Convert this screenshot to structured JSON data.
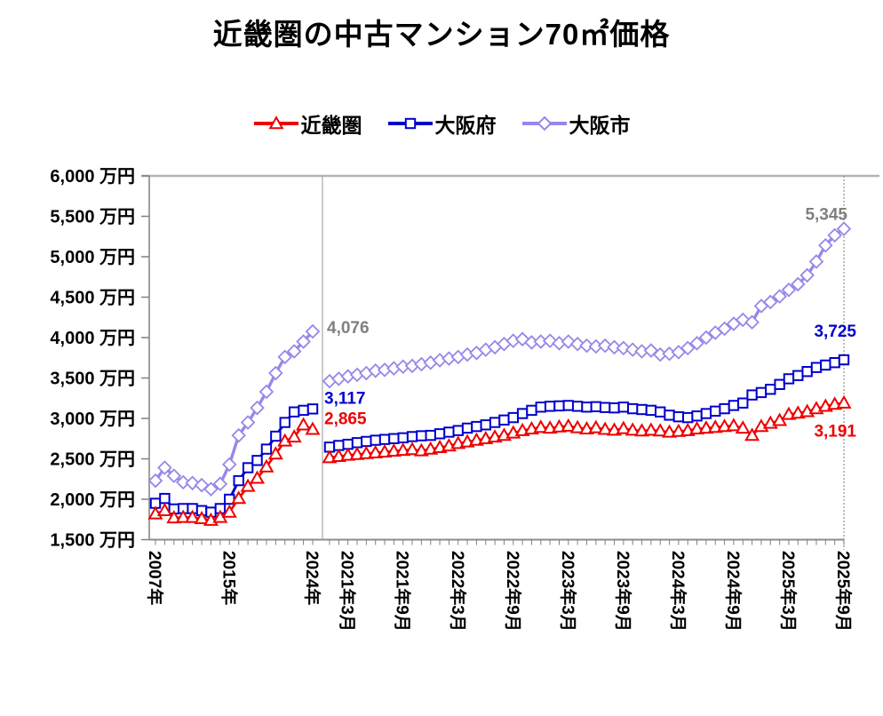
{
  "title": "近畿圏の中古マンション70㎡価格",
  "legend": [
    {
      "key": "kinki",
      "label": "近畿圏",
      "color": "#EE0000",
      "marker": "triangle"
    },
    {
      "key": "osaka_fu",
      "label": "大阪府",
      "color": "#0000CC",
      "marker": "square"
    },
    {
      "key": "osaka_shi",
      "label": "大阪市",
      "color": "#9787E8",
      "marker": "diamond"
    }
  ],
  "chart_data": {
    "type": "line",
    "title": "近畿圏の中古マンション70㎡価格",
    "unit": "万円",
    "y_axis": {
      "min": 1500,
      "max": 6000,
      "step": 500,
      "tick_labels": [
        "1,500 万円",
        "2,000 万円",
        "2,500 万円",
        "3,000 万円",
        "3,500 万円",
        "4,000 万円",
        "4,500 万円",
        "5,000 万円",
        "5,500 万円",
        "6,000 万円"
      ]
    },
    "x_axis": {
      "annual_years": [
        2007,
        2008,
        2009,
        2010,
        2011,
        2012,
        2013,
        2014,
        2015,
        2016,
        2017,
        2018,
        2019,
        2020,
        2021,
        2022,
        2023,
        2024
      ],
      "monthly_start": "2021年1月",
      "monthly_end": "2025年9月",
      "visible_tick_labels": [
        {
          "text": "2007年",
          "section": "annual",
          "index": 0
        },
        {
          "text": "2015年",
          "section": "annual",
          "index": 8
        },
        {
          "text": "2024年",
          "section": "annual",
          "index": 17
        },
        {
          "text": "2021年3月",
          "section": "monthly",
          "index": 2
        },
        {
          "text": "2021年9月",
          "section": "monthly",
          "index": 8
        },
        {
          "text": "2022年3月",
          "section": "monthly",
          "index": 14
        },
        {
          "text": "2022年9月",
          "section": "monthly",
          "index": 20
        },
        {
          "text": "2023年3月",
          "section": "monthly",
          "index": 26
        },
        {
          "text": "2023年9月",
          "section": "monthly",
          "index": 32
        },
        {
          "text": "2024年3月",
          "section": "monthly",
          "index": 38
        },
        {
          "text": "2024年9月",
          "section": "monthly",
          "index": 44
        },
        {
          "text": "2025年3月",
          "section": "monthly",
          "index": 50
        },
        {
          "text": "2025年9月",
          "section": "monthly",
          "index": 56
        }
      ]
    },
    "series": {
      "kinki": {
        "name": "近畿圏",
        "annual": [
          1820,
          1860,
          1770,
          1775,
          1775,
          1760,
          1740,
          1775,
          1840,
          2010,
          2160,
          2260,
          2400,
          2560,
          2720,
          2770,
          2920,
          2865
        ],
        "monthly": [
          2515,
          2530,
          2545,
          2555,
          2565,
          2575,
          2585,
          2595,
          2605,
          2615,
          2600,
          2620,
          2640,
          2660,
          2690,
          2710,
          2730,
          2750,
          2770,
          2790,
          2820,
          2850,
          2870,
          2890,
          2880,
          2895,
          2905,
          2885,
          2870,
          2885,
          2865,
          2855,
          2875,
          2855,
          2845,
          2855,
          2845,
          2830,
          2840,
          2850,
          2870,
          2880,
          2890,
          2900,
          2910,
          2880,
          2790,
          2900,
          2940,
          2975,
          3050,
          3065,
          3085,
          3120,
          3150,
          3175,
          3191
        ]
      },
      "osaka_fu": {
        "name": "大阪府",
        "annual": [
          1950,
          2010,
          1880,
          1885,
          1885,
          1860,
          1840,
          1885,
          2000,
          2230,
          2390,
          2480,
          2620,
          2780,
          2950,
          3080,
          3100,
          3117
        ],
        "monthly": [
          2645,
          2665,
          2680,
          2700,
          2715,
          2730,
          2740,
          2750,
          2760,
          2775,
          2785,
          2790,
          2810,
          2830,
          2850,
          2880,
          2900,
          2920,
          2950,
          2980,
          3010,
          3060,
          3100,
          3140,
          3150,
          3155,
          3160,
          3150,
          3140,
          3145,
          3135,
          3130,
          3140,
          3120,
          3110,
          3100,
          3080,
          3040,
          3020,
          3010,
          3030,
          3060,
          3090,
          3120,
          3160,
          3190,
          3290,
          3320,
          3360,
          3420,
          3490,
          3530,
          3580,
          3630,
          3660,
          3690,
          3725
        ]
      },
      "osaka_shi": {
        "name": "大阪市",
        "annual": [
          2230,
          2390,
          2290,
          2210,
          2200,
          2175,
          2125,
          2190,
          2430,
          2790,
          2950,
          3130,
          3330,
          3560,
          3760,
          3830,
          3950,
          4076
        ],
        "monthly": [
          3460,
          3490,
          3520,
          3540,
          3560,
          3590,
          3600,
          3620,
          3640,
          3650,
          3670,
          3690,
          3720,
          3740,
          3760,
          3790,
          3810,
          3850,
          3880,
          3920,
          3960,
          3980,
          3940,
          3950,
          3960,
          3930,
          3950,
          3920,
          3900,
          3890,
          3900,
          3880,
          3870,
          3850,
          3830,
          3840,
          3790,
          3800,
          3820,
          3870,
          3930,
          4000,
          4060,
          4110,
          4170,
          4220,
          4190,
          4390,
          4440,
          4510,
          4590,
          4660,
          4770,
          4940,
          5140,
          5265,
          5345
        ]
      }
    },
    "point_labels": [
      {
        "text": "4,076",
        "series": "osaka_shi",
        "point": "annual_last",
        "color": "#808080"
      },
      {
        "text": "3,117",
        "series": "osaka_fu",
        "point": "annual_last",
        "color": "#0000CC"
      },
      {
        "text": "2,865",
        "series": "kinki",
        "point": "annual_last",
        "color": "#EE0000"
      },
      {
        "text": "5,345",
        "series": "osaka_shi",
        "point": "monthly_last",
        "color": "#808080"
      },
      {
        "text": "3,725",
        "series": "osaka_fu",
        "point": "monthly_last",
        "color": "#0000CC"
      },
      {
        "text": "3,191",
        "series": "kinki",
        "point": "monthly_last",
        "color": "#EE0000"
      }
    ]
  }
}
